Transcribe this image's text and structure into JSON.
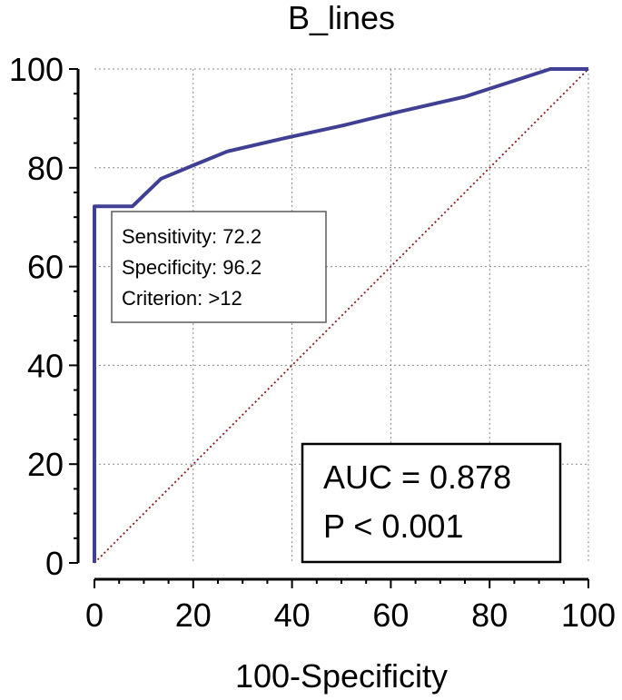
{
  "chart_data": {
    "type": "line",
    "title": "B_lines",
    "xlabel": "100-Specificity",
    "ylabel": "",
    "xlim": [
      0,
      100
    ],
    "ylim": [
      0,
      100
    ],
    "x_ticks": [
      0,
      20,
      40,
      60,
      80,
      100
    ],
    "y_ticks": [
      0,
      20,
      40,
      60,
      80,
      100
    ],
    "x_tick_labels": [
      "0",
      "20",
      "40",
      "60",
      "80",
      "100"
    ],
    "y_tick_labels": [
      "0",
      "20",
      "40",
      "60",
      "80",
      "100"
    ],
    "grid": true,
    "series": [
      {
        "role": "roc-curve",
        "color": "#3f3f94",
        "style": "solid",
        "x": [
          0,
          0,
          0,
          3.8,
          7.7,
          13.5,
          20,
          26.9,
          38.5,
          50,
          61.5,
          75,
          92.3,
          100
        ],
        "y": [
          0,
          66.7,
          72.2,
          72.2,
          72.2,
          77.8,
          80.5,
          83.3,
          86,
          88.5,
          91.3,
          94.4,
          100,
          100
        ]
      },
      {
        "role": "reference-diagonal",
        "color": "#8b1a1a",
        "style": "dotted",
        "x": [
          0,
          100
        ],
        "y": [
          0,
          100
        ]
      }
    ],
    "annotations": {
      "criterion_box": {
        "lines": [
          "Sensitivity: 72.2",
          "Specificity: 96.2",
          "Criterion: >12"
        ],
        "point": {
          "x": 3.8,
          "y": 72.2
        }
      },
      "stats_box": {
        "lines": [
          "AUC = 0.878",
          "P < 0.001"
        ]
      }
    }
  }
}
